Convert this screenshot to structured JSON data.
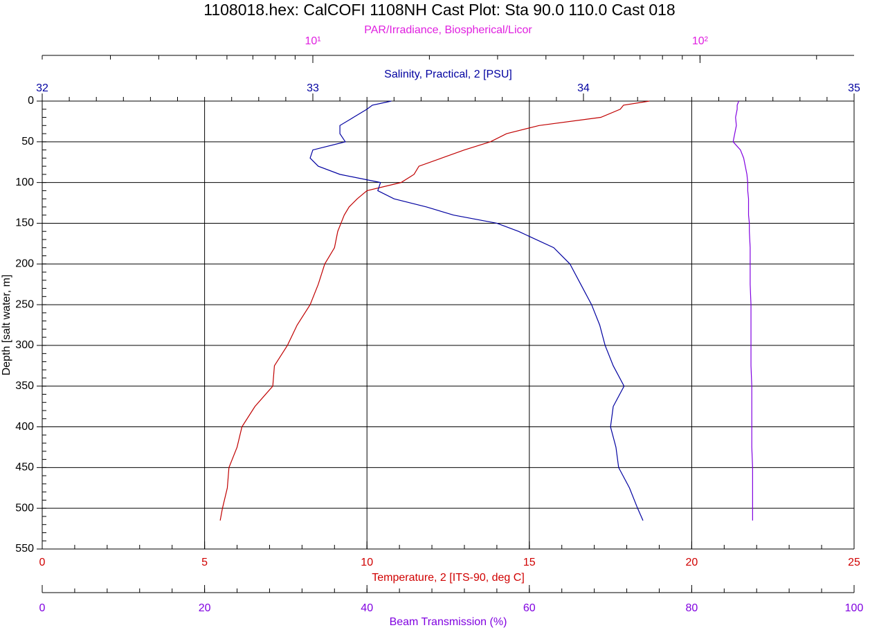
{
  "chart_data": {
    "type": "profile",
    "title": "1108018.hex: CalCOFI 1108NH Cast Plot: Sta 90.0 110.0 Cast 018",
    "grid": true,
    "depth_axis": {
      "label": "Depth [salt water, m]",
      "lim": [
        0,
        550
      ],
      "ticks": [
        0,
        50,
        100,
        150,
        200,
        250,
        300,
        350,
        400,
        450,
        500,
        550
      ],
      "inverted": true,
      "minor_step": 10
    },
    "axes": [
      {
        "id": "par",
        "label": "PAR/Irradiance, Biospherical/Licor",
        "lim": [
          2,
          250
        ],
        "scale": "log",
        "color": "#e020e0",
        "ticks": [
          {
            "value": 10,
            "label": "10¹"
          },
          {
            "value": 100,
            "label": "10²"
          }
        ]
      },
      {
        "id": "salinity",
        "label": "Salinity, Practical, 2 [PSU]",
        "lim": [
          32,
          35
        ],
        "ticks": [
          32,
          33,
          34,
          35
        ],
        "color": "#0000a0",
        "minor_step": 0.1
      },
      {
        "id": "temperature",
        "label": "Temperature, 2 [ITS-90, deg C]",
        "lim": [
          0,
          25
        ],
        "ticks": [
          0,
          5,
          10,
          15,
          20,
          25
        ],
        "color": "#d00000",
        "minor_step": 1
      },
      {
        "id": "beam",
        "label": "Beam Transmission (%)",
        "lim": [
          0,
          100
        ],
        "ticks": [
          0,
          20,
          40,
          60,
          80,
          100
        ],
        "color": "#8000e0",
        "minor_step": 4
      }
    ],
    "depth": [
      0,
      5,
      10,
      20,
      30,
      40,
      50,
      60,
      70,
      80,
      90,
      100,
      110,
      120,
      130,
      140,
      150,
      160,
      180,
      200,
      225,
      250,
      275,
      300,
      325,
      350,
      375,
      400,
      425,
      450,
      475,
      500,
      515
    ],
    "series": [
      {
        "axis": "temperature",
        "color": "#c00000",
        "values": [
          18.7,
          17.9,
          17.8,
          17.2,
          15.3,
          14.3,
          13.8,
          13.0,
          12.3,
          11.6,
          11.45,
          11.05,
          10.0,
          9.7,
          9.45,
          9.3,
          9.2,
          9.1,
          9.0,
          8.7,
          8.5,
          8.25,
          7.85,
          7.55,
          7.15,
          7.1,
          6.55,
          6.15,
          6.0,
          5.75,
          5.7,
          5.55,
          5.48
        ]
      },
      {
        "axis": "salinity",
        "color": "#0000a0",
        "values": [
          33.29,
          33.22,
          33.2,
          33.15,
          33.1,
          33.1,
          33.12,
          33.0,
          32.99,
          33.02,
          33.1,
          33.25,
          33.24,
          33.3,
          33.42,
          33.52,
          33.68,
          33.76,
          33.89,
          33.95,
          33.99,
          34.03,
          34.06,
          34.08,
          34.11,
          34.15,
          34.11,
          34.1,
          34.12,
          34.13,
          34.17,
          34.2,
          34.22
        ]
      },
      {
        "axis": "beam",
        "color": "#8000e0",
        "values": [
          85.8,
          85.6,
          85.6,
          85.4,
          85.5,
          85.3,
          85.1,
          86.0,
          86.4,
          86.6,
          86.8,
          86.9,
          86.9,
          87.0,
          87.0,
          87.0,
          87.1,
          87.1,
          87.2,
          87.2,
          87.2,
          87.3,
          87.3,
          87.3,
          87.3,
          87.4,
          87.4,
          87.4,
          87.4,
          87.5,
          87.5,
          87.5,
          87.5
        ]
      }
    ]
  }
}
